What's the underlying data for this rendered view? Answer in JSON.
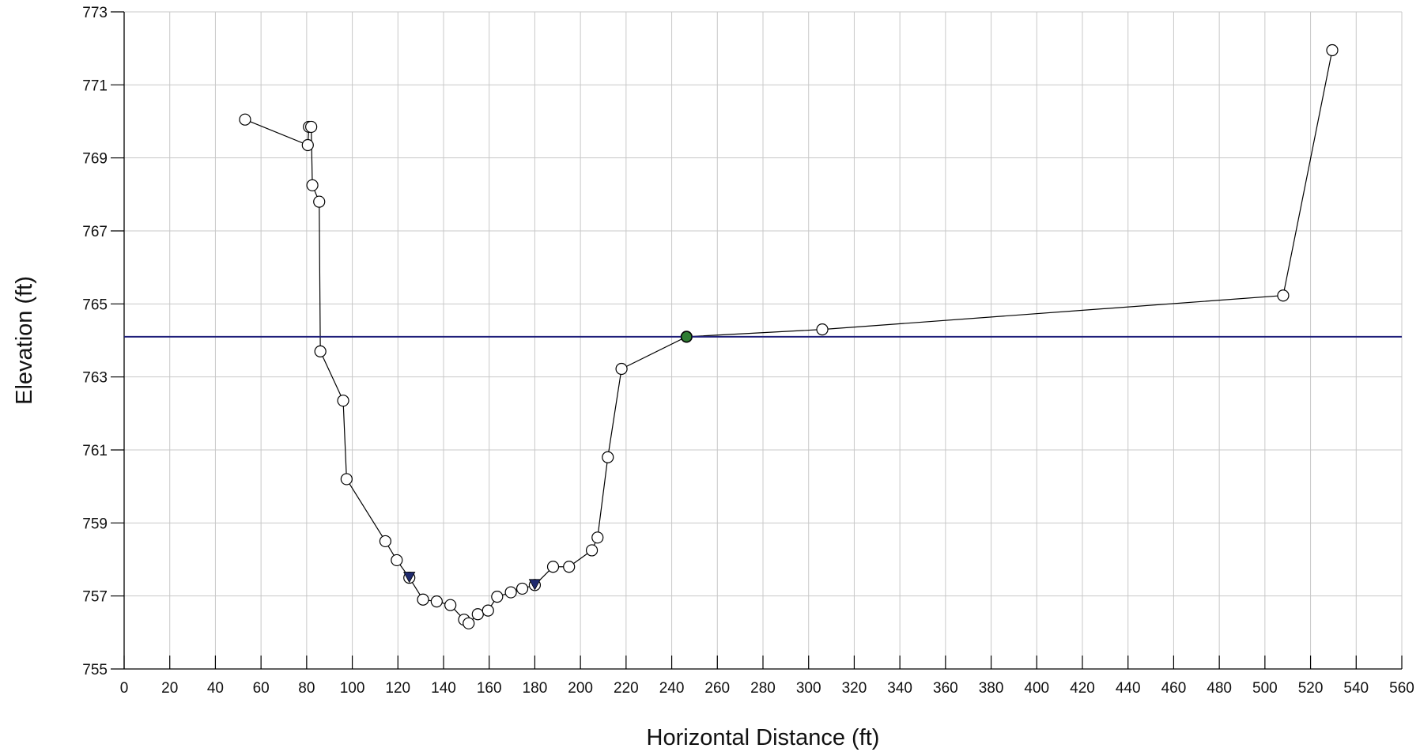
{
  "chart_data": {
    "type": "line",
    "title": "",
    "xlabel": "Horizontal Distance (ft)",
    "ylabel": "Elevation (ft)",
    "xlim": [
      0,
      560
    ],
    "ylim": [
      755,
      773
    ],
    "x_ticks": [
      0,
      20,
      40,
      60,
      80,
      100,
      120,
      140,
      160,
      180,
      200,
      220,
      240,
      260,
      280,
      300,
      320,
      340,
      360,
      380,
      400,
      420,
      440,
      460,
      480,
      500,
      520,
      540,
      560
    ],
    "y_ticks": [
      755,
      757,
      759,
      761,
      763,
      765,
      767,
      769,
      771,
      773
    ],
    "grid": true,
    "legend": "none",
    "series": [
      {
        "type": "line",
        "color": "#000000",
        "marker": "open-circle",
        "points": [
          [
            53,
            770.05
          ],
          [
            80.5,
            769.35
          ],
          [
            81,
            769.85
          ],
          [
            82,
            769.85
          ],
          [
            82.5,
            768.25
          ],
          [
            85.5,
            767.8
          ],
          [
            86,
            763.7
          ],
          [
            96,
            762.35
          ],
          [
            97.5,
            760.2
          ],
          [
            114.5,
            758.5
          ],
          [
            119.5,
            757.98
          ],
          [
            125,
            757.5
          ],
          [
            131,
            756.9
          ],
          [
            137,
            756.85
          ],
          [
            143,
            756.75
          ],
          [
            149,
            756.35
          ],
          [
            151,
            756.25
          ],
          [
            155,
            756.5
          ],
          [
            159.5,
            756.6
          ],
          [
            163.5,
            756.98
          ],
          [
            169.5,
            757.1
          ],
          [
            174.5,
            757.2
          ],
          [
            180,
            757.3
          ],
          [
            188,
            757.8
          ],
          [
            195,
            757.8
          ],
          [
            205,
            758.25
          ],
          [
            207.5,
            758.6
          ],
          [
            212,
            760.8
          ],
          [
            218,
            763.22
          ],
          [
            246.5,
            764.1
          ],
          [
            306,
            764.3
          ],
          [
            508,
            765.23
          ],
          [
            529.5,
            771.95
          ]
        ]
      },
      {
        "type": "hline",
        "name": "",
        "color": "#1f1f7a",
        "y": 764.1
      }
    ],
    "markers": [
      {
        "shape": "triangle-down",
        "color": "#1f2a6e",
        "x": 125,
        "y": 757.5
      },
      {
        "shape": "triangle-down",
        "color": "#1f2a6e",
        "x": 180,
        "y": 757.3
      },
      {
        "shape": "filled-circle",
        "color": "#2e7d32",
        "x": 246.5,
        "y": 764.1
      }
    ]
  }
}
